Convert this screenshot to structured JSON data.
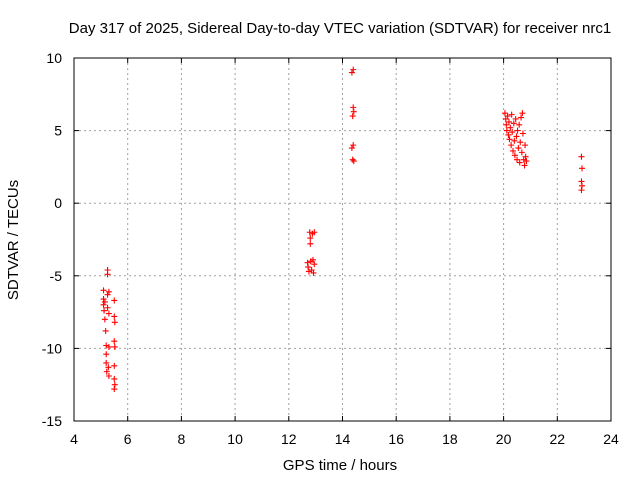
{
  "chart_data": {
    "type": "scatter",
    "title": "Day 317 of 2025, Sidereal Day-to-day VTEC variation (SDTVAR) for receiver nrc1",
    "xlabel": "GPS time / hours",
    "ylabel": "SDTVAR / TECUs",
    "xlim": [
      4,
      24
    ],
    "ylim": [
      -15,
      10
    ],
    "xticks": [
      4,
      6,
      8,
      10,
      12,
      14,
      16,
      18,
      20,
      22,
      24
    ],
    "yticks": [
      -15,
      -10,
      -5,
      0,
      5,
      10
    ],
    "grid": true,
    "marker": "+",
    "color": "#ff0000",
    "series": [
      {
        "name": "SDTVAR",
        "points": [
          [
            5.1,
            -6.0
          ],
          [
            5.1,
            -6.6
          ],
          [
            5.1,
            -7.0
          ],
          [
            5.12,
            -7.4
          ],
          [
            5.15,
            -6.8
          ],
          [
            5.15,
            -8.0
          ],
          [
            5.18,
            -8.8
          ],
          [
            5.2,
            -9.8
          ],
          [
            5.2,
            -10.4
          ],
          [
            5.2,
            -11.0
          ],
          [
            5.22,
            -11.6
          ],
          [
            5.25,
            -4.6
          ],
          [
            5.25,
            -4.9
          ],
          [
            5.25,
            -6.3
          ],
          [
            5.25,
            -7.2
          ],
          [
            5.28,
            -11.3
          ],
          [
            5.3,
            -11.9
          ],
          [
            5.3,
            -9.9
          ],
          [
            5.3,
            -7.6
          ],
          [
            5.3,
            -6.1
          ],
          [
            5.5,
            -6.7
          ],
          [
            5.5,
            -7.8
          ],
          [
            5.52,
            -8.2
          ],
          [
            5.5,
            -9.5
          ],
          [
            5.52,
            -9.9
          ],
          [
            5.5,
            -11.2
          ],
          [
            5.5,
            -12.1
          ],
          [
            5.52,
            -12.5
          ],
          [
            5.5,
            -12.8
          ],
          [
            12.7,
            -4.1
          ],
          [
            12.72,
            -4.4
          ],
          [
            12.75,
            -4.7
          ],
          [
            12.78,
            -2.0
          ],
          [
            12.8,
            -2.4
          ],
          [
            12.8,
            -2.8
          ],
          [
            12.82,
            -4.0
          ],
          [
            12.85,
            -4.6
          ],
          [
            12.88,
            -2.1
          ],
          [
            12.9,
            -3.9
          ],
          [
            12.92,
            -4.8
          ],
          [
            12.95,
            -2.0
          ],
          [
            12.95,
            -4.2
          ],
          [
            14.35,
            9.0
          ],
          [
            14.4,
            9.2
          ],
          [
            14.38,
            6.0
          ],
          [
            14.42,
            6.3
          ],
          [
            14.4,
            6.6
          ],
          [
            14.35,
            3.8
          ],
          [
            14.4,
            4.0
          ],
          [
            14.38,
            3.0
          ],
          [
            14.42,
            2.9
          ],
          [
            20.05,
            6.2
          ],
          [
            20.08,
            5.8
          ],
          [
            20.1,
            5.4
          ],
          [
            20.12,
            5.0
          ],
          [
            20.15,
            6.0
          ],
          [
            20.18,
            4.7
          ],
          [
            20.2,
            5.6
          ],
          [
            20.22,
            4.4
          ],
          [
            20.25,
            5.2
          ],
          [
            20.28,
            4.0
          ],
          [
            20.3,
            6.1
          ],
          [
            20.32,
            4.9
          ],
          [
            20.35,
            3.6
          ],
          [
            20.38,
            5.5
          ],
          [
            20.4,
            4.3
          ],
          [
            20.42,
            3.3
          ],
          [
            20.45,
            5.8
          ],
          [
            20.48,
            4.6
          ],
          [
            20.5,
            3.0
          ],
          [
            20.52,
            5.0
          ],
          [
            20.55,
            3.8
          ],
          [
            20.58,
            5.4
          ],
          [
            20.6,
            2.8
          ],
          [
            20.62,
            4.2
          ],
          [
            20.65,
            5.9
          ],
          [
            20.68,
            3.5
          ],
          [
            20.7,
            6.2
          ],
          [
            20.72,
            4.8
          ],
          [
            20.75,
            3.0
          ],
          [
            20.78,
            2.6
          ],
          [
            20.8,
            4.0
          ],
          [
            20.82,
            3.2
          ],
          [
            20.85,
            2.9
          ],
          [
            22.9,
            3.2
          ],
          [
            22.92,
            2.4
          ],
          [
            22.9,
            1.5
          ],
          [
            22.92,
            1.2
          ],
          [
            22.9,
            0.9
          ]
        ]
      }
    ]
  }
}
